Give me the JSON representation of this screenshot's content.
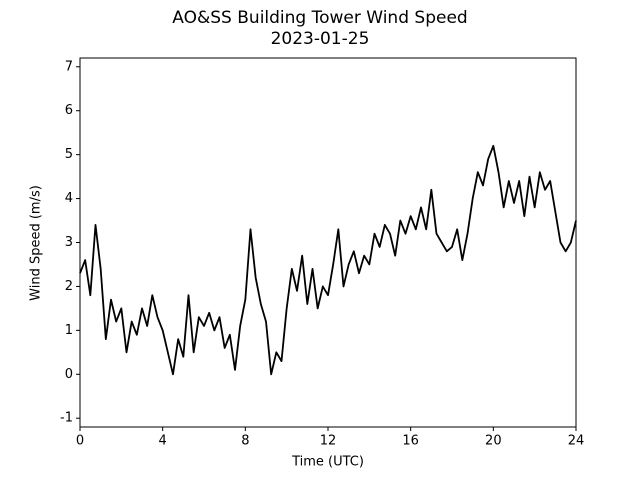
{
  "chart_data": {
    "type": "line",
    "title": "AO&SS Building Tower Wind Speed",
    "subtitle": "2023-01-25",
    "x_label": "Time (UTC)",
    "y_label": "Wind Speed (m/s)",
    "xlim": [
      0,
      24
    ],
    "xticks": [
      0,
      4,
      8,
      12,
      16,
      20,
      24
    ],
    "ylim": [
      -1.2,
      7.2
    ],
    "yticks": [
      -1,
      0,
      1,
      2,
      3,
      4,
      5,
      6,
      7
    ],
    "grid": false,
    "series": [
      {
        "name": "Wind Speed",
        "color": "#000000",
        "x": [
          0,
          0.25,
          0.5,
          0.75,
          1,
          1.25,
          1.5,
          1.75,
          2,
          2.25,
          2.5,
          2.75,
          3,
          3.25,
          3.5,
          3.75,
          4,
          4.25,
          4.5,
          4.75,
          5,
          5.25,
          5.5,
          5.75,
          6,
          6.25,
          6.5,
          6.75,
          7,
          7.25,
          7.5,
          7.75,
          8,
          8.25,
          8.5,
          8.75,
          9,
          9.25,
          9.5,
          9.75,
          10,
          10.25,
          10.5,
          10.75,
          11,
          11.25,
          11.5,
          11.75,
          12,
          12.25,
          12.5,
          12.75,
          13,
          13.25,
          13.5,
          13.75,
          14,
          14.25,
          14.5,
          14.75,
          15,
          15.25,
          15.5,
          15.75,
          16,
          16.25,
          16.5,
          16.75,
          17,
          17.25,
          17.5,
          17.75,
          18,
          18.25,
          18.5,
          18.75,
          19,
          19.25,
          19.5,
          19.75,
          20,
          20.25,
          20.5,
          20.75,
          21,
          21.25,
          21.5,
          21.75,
          22,
          22.25,
          22.5,
          22.75,
          23,
          23.25,
          23.5,
          23.75,
          24
        ],
        "values": [
          2.3,
          2.6,
          1.8,
          3.4,
          2.4,
          0.8,
          1.7,
          1.2,
          1.5,
          0.5,
          1.2,
          0.9,
          1.5,
          1.1,
          1.8,
          1.3,
          1.0,
          0.5,
          0.0,
          0.8,
          0.4,
          1.8,
          0.5,
          1.3,
          1.1,
          1.4,
          1.0,
          1.3,
          0.6,
          0.9,
          0.1,
          1.1,
          1.7,
          3.3,
          2.2,
          1.6,
          1.2,
          0.0,
          0.5,
          0.3,
          1.5,
          2.4,
          1.9,
          2.7,
          1.6,
          2.4,
          1.5,
          2.0,
          1.8,
          2.5,
          3.3,
          2.0,
          2.5,
          2.8,
          2.3,
          2.7,
          2.5,
          3.2,
          2.9,
          3.4,
          3.2,
          2.7,
          3.5,
          3.2,
          3.6,
          3.3,
          3.8,
          3.3,
          4.2,
          3.2,
          3.0,
          2.8,
          2.9,
          3.3,
          2.6,
          3.2,
          4.0,
          4.6,
          4.3,
          4.9,
          5.2,
          4.6,
          3.8,
          4.4,
          3.9,
          4.4,
          3.6,
          4.5,
          3.8,
          4.6,
          4.2,
          4.4,
          3.7,
          3.0,
          2.8,
          3.0,
          3.5
        ]
      }
    ]
  }
}
